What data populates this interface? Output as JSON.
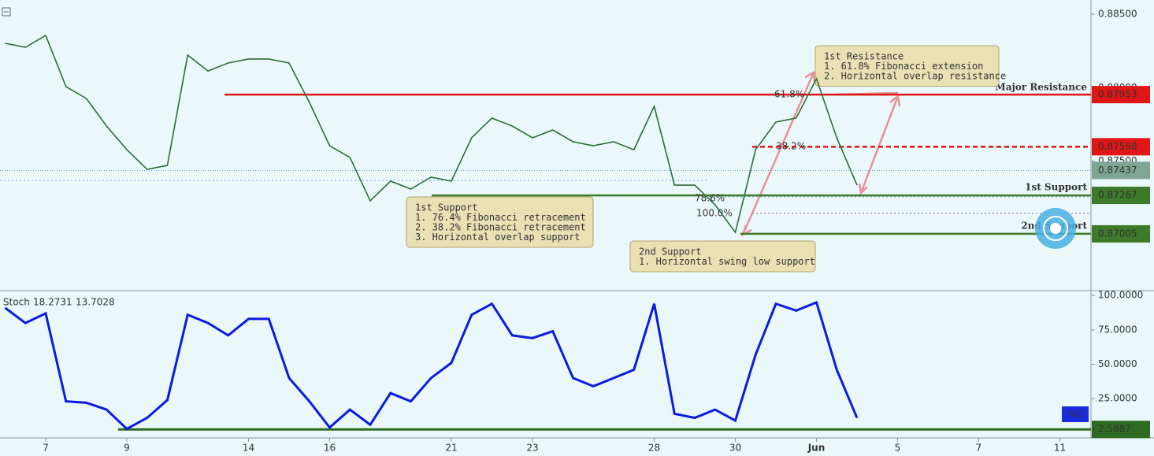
{
  "chart_data": [
    {
      "type": "line",
      "name": "price",
      "ylim": [
        0.86624,
        0.88597
      ],
      "yticks": [
        {
          "value": 0.885,
          "label": "0.88500"
        },
        {
          "value": 0.88,
          "label": "0.88000"
        },
        {
          "value": 0.875,
          "label": "0.87500"
        }
      ],
      "series": [
        {
          "color": "#2f6b3a",
          "values": [
            0.88302,
            0.88275,
            0.88356,
            0.88007,
            0.87927,
            0.87739,
            0.87578,
            0.87444,
            0.87471,
            0.88222,
            0.88114,
            0.88168,
            0.88195,
            0.88195,
            0.88168,
            0.879,
            0.87605,
            0.87525,
            0.8723,
            0.87364,
            0.8731,
            0.87391,
            0.87364,
            0.87659,
            0.87793,
            0.87739,
            0.87659,
            0.87712,
            0.87632,
            0.87605,
            0.87632,
            0.87578,
            0.87873,
            0.87337,
            0.87337,
            0.87203,
            0.87015,
            0.87578,
            0.87766,
            0.87793,
            0.88061,
            0.87659,
            0.87337,
            null,
            null,
            null,
            null,
            null,
            null,
            null,
            null,
            null,
            null,
            null
          ]
        }
      ],
      "levels": [
        {
          "value": 0.87953,
          "label": "Major Resistance",
          "color": "#e01515",
          "style": "solid"
        },
        {
          "value": 0.87598,
          "color": "#e01515",
          "style": "dashed"
        },
        {
          "value": 0.87437,
          "color": "#7fa594",
          "style": "dotted"
        },
        {
          "value": 0.87267,
          "label": "1st Support",
          "color": "#3d7a2a",
          "style": "solid"
        },
        {
          "value": 0.87005,
          "label": "2nd Support",
          "color": "#3d7a2a",
          "style": "solid"
        }
      ],
      "fib_labels": [
        "61.8%",
        "38.2%",
        "78.6%",
        "100.0%"
      ],
      "annotations": [
        [
          "1st Support",
          "1. 76.4% Fibonacci retracement",
          "2. 38.2% Fibonacci retracement",
          "3. Horizontal overlap support"
        ],
        [
          "2nd Support",
          "1. Horizontal swing low support"
        ],
        [
          "1st Resistance",
          "1. 61.8% Fibonacci extension",
          "2. Horizontal overlap resistance"
        ]
      ]
    },
    {
      "type": "line",
      "name": "Stoch",
      "header_values": [
        18.2731,
        13.7028
      ],
      "legend": "%D",
      "ylim": [
        -3,
        103
      ],
      "yticks": [
        {
          "value": 100,
          "label": "100.0000"
        },
        {
          "value": 75,
          "label": "75.0000"
        },
        {
          "value": 50,
          "label": "50.0000"
        },
        {
          "value": 25,
          "label": "25.0000"
        }
      ],
      "level": 2.5887,
      "categories": [
        null,
        null,
        "7",
        null,
        null,
        null,
        "9",
        null,
        null,
        null,
        null,
        null,
        "14",
        null,
        null,
        null,
        "16",
        null,
        null,
        null,
        null,
        null,
        "21",
        null,
        null,
        null,
        "23",
        null,
        null,
        null,
        null,
        null,
        "28",
        null,
        null,
        null,
        "30",
        null,
        null,
        null,
        "Jun",
        null,
        null,
        null,
        "5",
        null,
        null,
        null,
        "7",
        null,
        null,
        null,
        "11",
        null
      ],
      "series": [
        {
          "color": "#0b1be0",
          "values": [
            91,
            80,
            87,
            23,
            22,
            17,
            3,
            11,
            24,
            86,
            80,
            71,
            83,
            83,
            40,
            23,
            4,
            17,
            6,
            29,
            23,
            40,
            51,
            86,
            94,
            71,
            69,
            74,
            40,
            34,
            40,
            46,
            94,
            14,
            11,
            17,
            9,
            57,
            94,
            89,
            95,
            46,
            11,
            null,
            null,
            null,
            null,
            null,
            null,
            null,
            null,
            null,
            null,
            null
          ]
        }
      ]
    }
  ]
}
